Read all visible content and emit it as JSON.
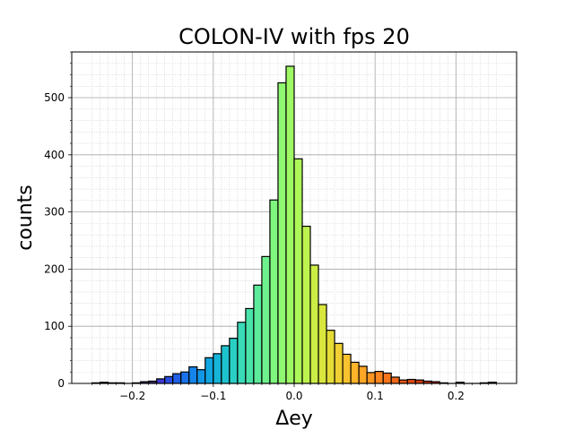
{
  "chart_data": {
    "type": "bar",
    "title": "COLON-IV with fps 20",
    "xlabel": "Δey",
    "ylabel": "counts",
    "xlim": [
      -0.275,
      0.275
    ],
    "ylim": [
      0,
      580
    ],
    "bin_width": 0.01,
    "x_ticks": [
      -0.2,
      -0.1,
      0.0,
      0.1,
      0.2
    ],
    "x_tick_labels": [
      "−0.2",
      "−0.1",
      "0.0",
      "0.1",
      "0.2"
    ],
    "y_ticks": [
      0,
      100,
      200,
      300,
      400,
      500
    ],
    "y_tick_labels": [
      "0",
      "100",
      "200",
      "300",
      "400",
      "500"
    ],
    "grid": true,
    "x": [
      -0.245,
      -0.235,
      -0.225,
      -0.215,
      -0.205,
      -0.195,
      -0.185,
      -0.175,
      -0.165,
      -0.155,
      -0.145,
      -0.135,
      -0.125,
      -0.115,
      -0.105,
      -0.095,
      -0.085,
      -0.075,
      -0.065,
      -0.055,
      -0.045,
      -0.035,
      -0.025,
      -0.015,
      -0.005,
      0.005,
      0.015,
      0.025,
      0.035,
      0.045,
      0.055,
      0.065,
      0.075,
      0.085,
      0.095,
      0.105,
      0.115,
      0.125,
      0.135,
      0.145,
      0.155,
      0.165,
      0.175,
      0.185,
      0.195,
      0.205,
      0.215,
      0.225,
      0.235,
      0.245
    ],
    "values": [
      1,
      2,
      1,
      1,
      0,
      1,
      3,
      4,
      8,
      12,
      17,
      20,
      29,
      24,
      45,
      52,
      66,
      79,
      107,
      131,
      172,
      222,
      321,
      526,
      555,
      393,
      275,
      207,
      138,
      93,
      70,
      51,
      37,
      30,
      19,
      21,
      18,
      11,
      6,
      7,
      6,
      4,
      3,
      1,
      0,
      2,
      0,
      0,
      1,
      2
    ],
    "colors": [
      "#30123b",
      "#311542",
      "#33194a",
      "#351c52",
      "#36205a",
      "#382361",
      "#3a2769",
      "#3b2a71",
      "#3e3ad6",
      "#2a4de0",
      "#2160e6",
      "#1a72e9",
      "#1585ea",
      "#1296e6",
      "#11a6e0",
      "#16b5d8",
      "#1ec2cf",
      "#2acfc4",
      "#39dab7",
      "#4ae3a9",
      "#5ceb9b",
      "#6ef18c",
      "#7ff67e",
      "#8ff870",
      "#9ef964",
      "#adf758",
      "#bdf34e",
      "#cbed45",
      "#d9e63d",
      "#e5dc37",
      "#f0d032",
      "#f9c22e",
      "#ffb42a",
      "#ffa526",
      "#ff9522",
      "#fd851f",
      "#f8761b",
      "#f26717",
      "#ea5814",
      "#e04a11",
      "#d63d0e",
      "#ca310b",
      "#be2609",
      "#b11d07",
      "#a31605",
      "#951004",
      "#870b03",
      "#790702",
      "#6b0401",
      "#5e0201"
    ]
  }
}
